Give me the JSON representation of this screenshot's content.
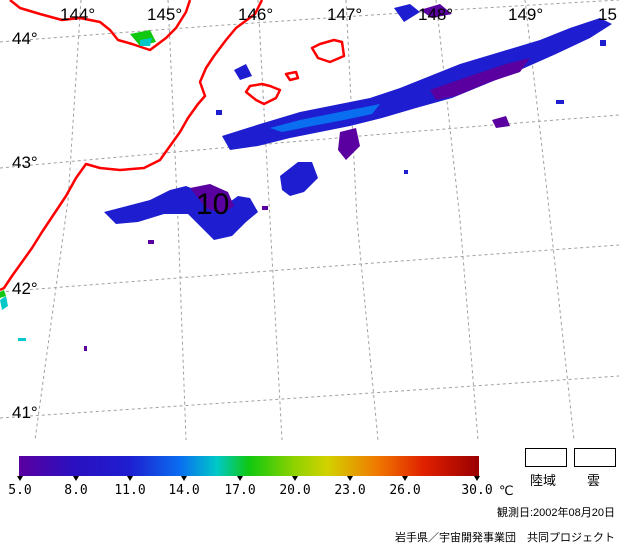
{
  "map": {
    "longitude_labels": [
      "144°",
      "145°",
      "146°",
      "147°",
      "148°",
      "149°",
      "15"
    ],
    "latitude_labels": [
      "44°",
      "43°",
      "42°",
      "41°"
    ],
    "annotation": "10",
    "colors": {
      "coastline": "#ff0000",
      "graticule": "#a0a0a0",
      "background": "#ffffff"
    }
  },
  "colorbar": {
    "ticks": [
      "5.0",
      "8.0",
      "11.0",
      "14.0",
      "17.0",
      "20.0",
      "23.0",
      "26.0",
      "30.0"
    ],
    "unit": "℃",
    "colors": [
      "#5a00a0",
      "#1e1ed0",
      "#0a6ef0",
      "#00c8c8",
      "#10c810",
      "#d2d200",
      "#f07800",
      "#e02000",
      "#9a0000"
    ]
  },
  "legend": {
    "land_label": "陸域",
    "cloud_label": "雲"
  },
  "footer": {
    "observation_date": "観測日:2002年08月20日",
    "credit": "岩手県／宇宙開発事業団　共同プロジェクト"
  }
}
